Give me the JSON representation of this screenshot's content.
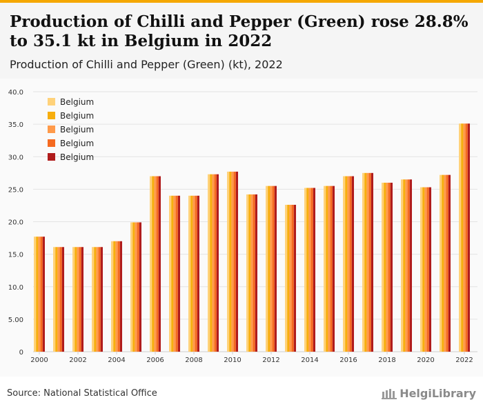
{
  "header": {
    "title": "Production of Chilli and Pepper (Green) rose 28.8% to 35.1 kt in Belgium in 2022",
    "subtitle": "Production of Chilli and Pepper (Green) (kt), 2022"
  },
  "footer": {
    "source": "Source: National Statistical Office",
    "brand": "HelgiLibrary"
  },
  "colors": {
    "accent": "#f5a800",
    "series": [
      "#ffd27a",
      "#f7ae0e",
      "#ff9a4a",
      "#f56a20",
      "#b01c1c"
    ]
  },
  "chart_data": {
    "type": "bar",
    "title": "Production of Chilli and Pepper (Green) (kt), 2022",
    "xlabel": "",
    "ylabel": "",
    "ylim": [
      0,
      40
    ],
    "yticks": [
      "0",
      "5.00",
      "10.0",
      "15.0",
      "20.0",
      "25.0",
      "30.0",
      "35.0",
      "40.0"
    ],
    "grid": true,
    "legend_position": "top-left",
    "categories": [
      "2000",
      "2001",
      "2002",
      "2003",
      "2004",
      "2005",
      "2006",
      "2007",
      "2008",
      "2009",
      "2010",
      "2011",
      "2012",
      "2013",
      "2014",
      "2015",
      "2016",
      "2017",
      "2018",
      "2019",
      "2020",
      "2021",
      "2022"
    ],
    "x_tick_labels": [
      "2000",
      "2002",
      "2004",
      "2006",
      "2008",
      "2010",
      "2012",
      "2014",
      "2016",
      "2018",
      "2020",
      "2022"
    ],
    "series": [
      {
        "name": "Belgium",
        "values": [
          17.7,
          16.1,
          16.1,
          16.1,
          17.0,
          19.9,
          27.0,
          24.0,
          24.0,
          27.3,
          27.7,
          24.2,
          25.5,
          22.6,
          25.2,
          25.5,
          27.0,
          27.5,
          26.0,
          26.5,
          25.3,
          27.2,
          35.1
        ]
      },
      {
        "name": "Belgium",
        "values": [
          17.7,
          16.1,
          16.1,
          16.1,
          17.0,
          19.9,
          27.0,
          24.0,
          24.0,
          27.3,
          27.7,
          24.2,
          25.5,
          22.6,
          25.2,
          25.5,
          27.0,
          27.5,
          26.0,
          26.5,
          25.3,
          27.2,
          35.1
        ]
      },
      {
        "name": "Belgium",
        "values": [
          17.7,
          16.1,
          16.1,
          16.1,
          17.0,
          19.9,
          27.0,
          24.0,
          24.0,
          27.3,
          27.7,
          24.2,
          25.5,
          22.6,
          25.2,
          25.5,
          27.0,
          27.5,
          26.0,
          26.5,
          25.3,
          27.2,
          35.1
        ]
      },
      {
        "name": "Belgium",
        "values": [
          17.7,
          16.1,
          16.1,
          16.1,
          17.0,
          19.9,
          27.0,
          24.0,
          24.0,
          27.3,
          27.7,
          24.2,
          25.5,
          22.6,
          25.2,
          25.5,
          27.0,
          27.5,
          26.0,
          26.5,
          25.3,
          27.2,
          35.1
        ]
      },
      {
        "name": "Belgium",
        "values": [
          17.7,
          16.1,
          16.1,
          16.1,
          17.0,
          19.9,
          27.0,
          24.0,
          24.0,
          27.3,
          27.7,
          24.2,
          25.5,
          22.6,
          25.2,
          25.5,
          27.0,
          27.5,
          26.0,
          26.5,
          25.3,
          27.2,
          35.1
        ]
      }
    ]
  }
}
